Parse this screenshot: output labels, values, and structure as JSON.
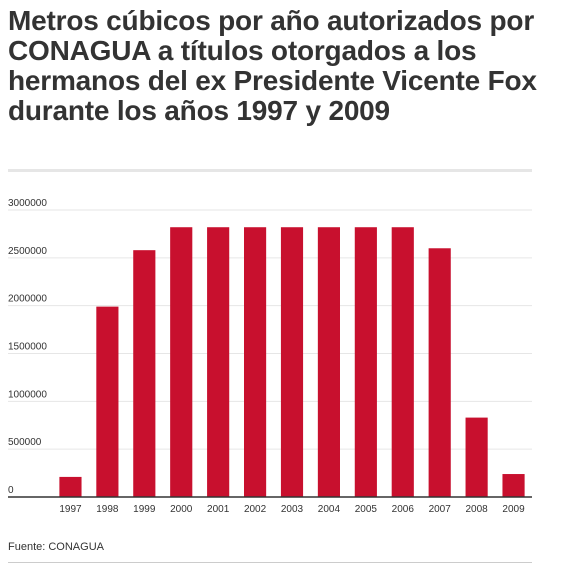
{
  "header": {
    "title": "Metros cúbicos por año autorizados por CONAGUA a títulos otorgados a los hermanos del ex Presidente Vicente Fox durante los años 1997 y 2009"
  },
  "footer": {
    "source": "Fuente: CONAGUA"
  },
  "colors": {
    "bar": "#c8102e",
    "grid": "#e6e6e6",
    "axis": "#333333",
    "text": "#333333"
  },
  "chart_data": {
    "type": "bar",
    "categories": [
      "1997",
      "1998",
      "1999",
      "2000",
      "2001",
      "2002",
      "2003",
      "2004",
      "2005",
      "2006",
      "2007",
      "2008",
      "2009"
    ],
    "values": [
      210000,
      1990000,
      2580000,
      2820000,
      2820000,
      2820000,
      2820000,
      2820000,
      2820000,
      2820000,
      2600000,
      830000,
      240000
    ],
    "yticks": [
      0,
      500000,
      1000000,
      1500000,
      2000000,
      2500000,
      3000000
    ],
    "ytick_labels": [
      "0",
      "500000",
      "1000000",
      "1500000",
      "2000000",
      "2500000",
      "3000000"
    ],
    "ylim": [
      0,
      3000000
    ],
    "grid": true,
    "legend": "none",
    "title": "Metros cúbicos por año autorizados por CONAGUA a títulos otorgados a los hermanos del ex Presidente Vicente Fox durante los años 1997 y 2009",
    "xlabel": "",
    "ylabel": ""
  }
}
